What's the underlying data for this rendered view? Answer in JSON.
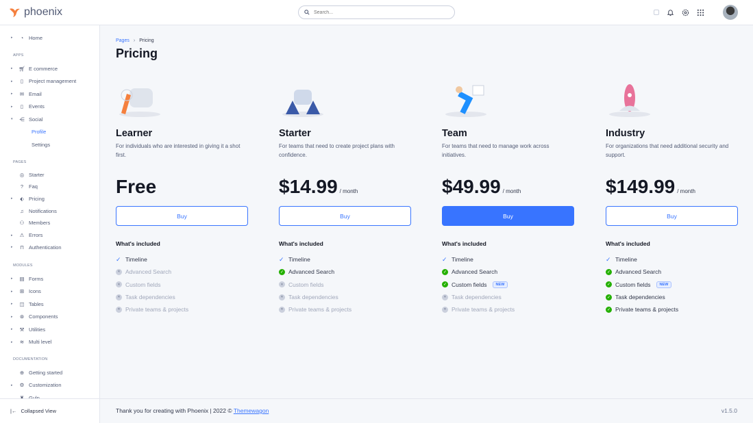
{
  "brand": {
    "name": "phoenix",
    "accent": "#3874ff",
    "logo_color": "#f5803e"
  },
  "search": {
    "placeholder": "Search..."
  },
  "topbar": {
    "icons": [
      "theme-toggle-icon",
      "bell-icon",
      "gear-icon",
      "apps-grid-icon"
    ]
  },
  "sidebar": {
    "home": "Home",
    "apps_heading": "APPS",
    "apps": [
      "E commerce",
      "Project management",
      "Email",
      "Events",
      "Social"
    ],
    "social_sub": [
      "Profile",
      "Settings"
    ],
    "pages_heading": "PAGES",
    "pages": [
      "Starter",
      "Faq",
      "Pricing",
      "Notifications",
      "Members",
      "Errors",
      "Authentication"
    ],
    "modules_heading": "MODULES",
    "modules": [
      "Forms",
      "Icons",
      "Tables",
      "Components",
      "Utilities",
      "Multi level"
    ],
    "docs_heading": "DOCUMENTATION",
    "docs": [
      "Getting started",
      "Customization",
      "Gulp"
    ],
    "collapse": "Collapsed View"
  },
  "breadcrumb": [
    "Pages",
    "Pricing"
  ],
  "page_title": "Pricing",
  "included_label": "What's included",
  "buy_label": "Buy",
  "new_badge": "NEW",
  "plans": [
    {
      "name": "Learner",
      "desc": "For individuals who are interested in giving it a shot first.",
      "price": "Free",
      "period": "",
      "primary": false,
      "features": [
        {
          "label": "Timeline",
          "state": "check"
        },
        {
          "label": "Advanced Search",
          "state": "no"
        },
        {
          "label": "Custom fields",
          "state": "no"
        },
        {
          "label": "Task dependencies",
          "state": "no"
        },
        {
          "label": "Private teams & projects",
          "state": "no"
        }
      ]
    },
    {
      "name": "Starter",
      "desc": "For teams that need to create project plans with confidence.",
      "price": "$14.99",
      "period": "/ month",
      "primary": false,
      "features": [
        {
          "label": "Timeline",
          "state": "check"
        },
        {
          "label": "Advanced Search",
          "state": "ok"
        },
        {
          "label": "Custom fields",
          "state": "no"
        },
        {
          "label": "Task dependencies",
          "state": "no"
        },
        {
          "label": "Private teams & projects",
          "state": "no"
        }
      ]
    },
    {
      "name": "Team",
      "desc": "For teams that need to manage work across initiatives.",
      "price": "$49.99",
      "period": "/ month",
      "primary": true,
      "features": [
        {
          "label": "Timeline",
          "state": "check"
        },
        {
          "label": "Advanced Search",
          "state": "ok"
        },
        {
          "label": "Custom fields",
          "state": "ok",
          "badge": true
        },
        {
          "label": "Task dependencies",
          "state": "no"
        },
        {
          "label": "Private teams & projects",
          "state": "no"
        }
      ]
    },
    {
      "name": "Industry",
      "desc": "For organizations that need additional security and support.",
      "price": "$149.99",
      "period": "/ month",
      "primary": false,
      "features": [
        {
          "label": "Timeline",
          "state": "check"
        },
        {
          "label": "Advanced Search",
          "state": "ok"
        },
        {
          "label": "Custom fields",
          "state": "ok",
          "badge": true
        },
        {
          "label": "Task dependencies",
          "state": "ok"
        },
        {
          "label": "Private teams & projects",
          "state": "ok"
        }
      ]
    }
  ],
  "footer": {
    "text": "Thank you for creating with Phoenix | 2022 ©",
    "link": "Themewagon",
    "version": "v1.5.0"
  }
}
